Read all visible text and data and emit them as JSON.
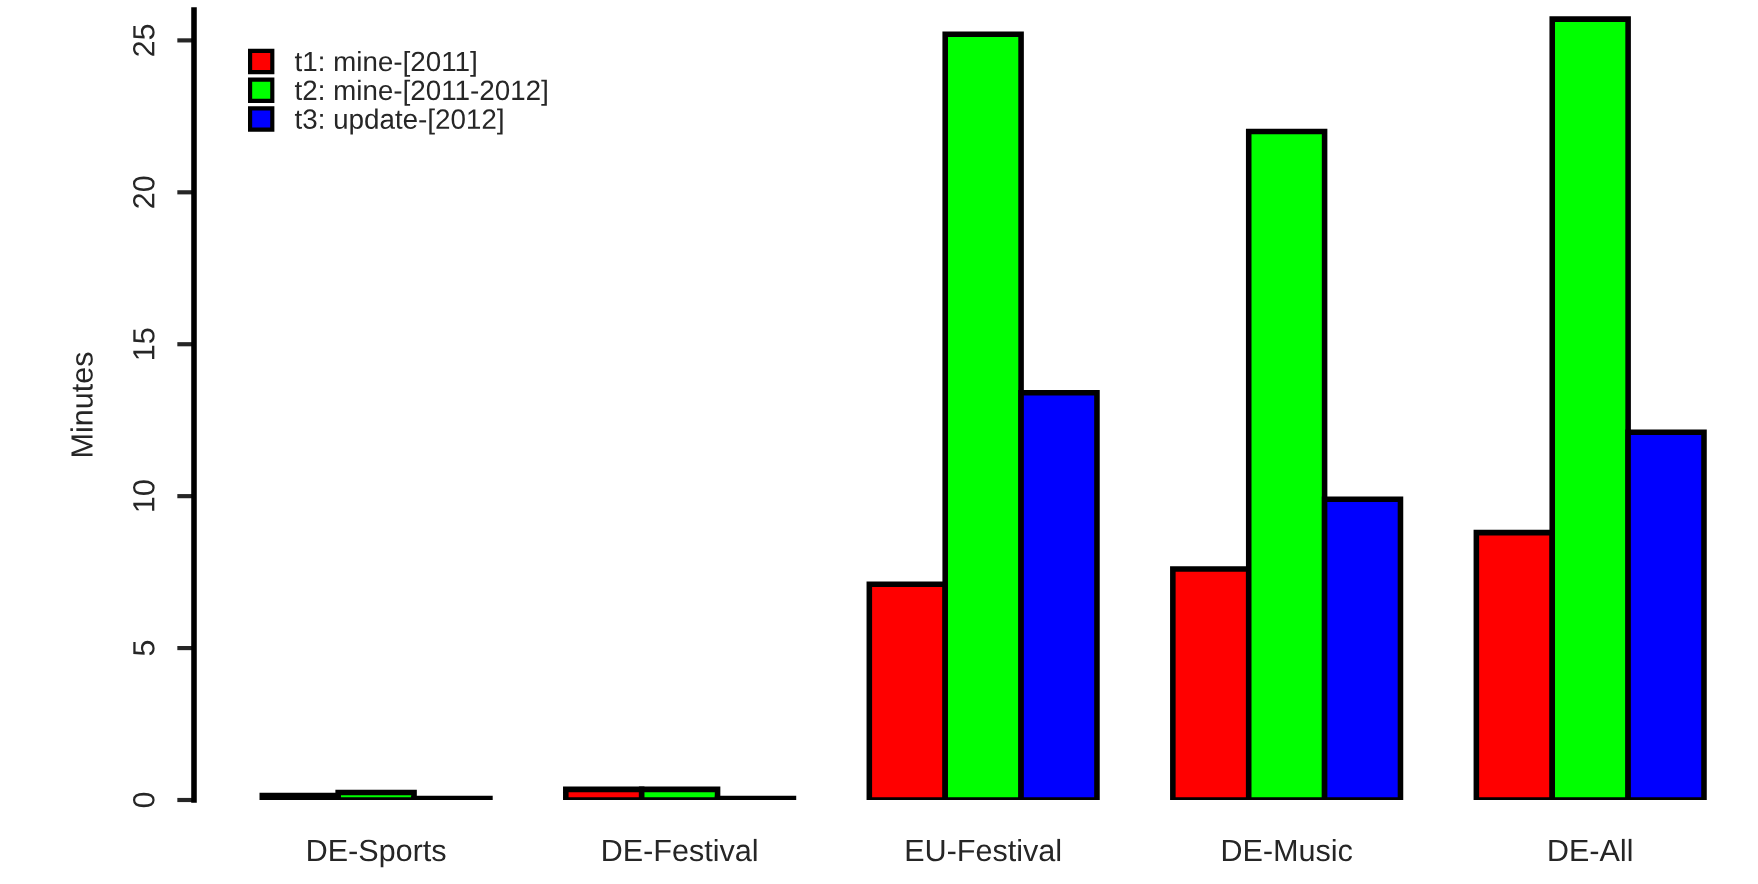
{
  "chart_data": {
    "type": "bar",
    "ylabel": "Minutes",
    "categories": [
      "DE-Sports",
      "DE-Festival",
      "EU-Festival",
      "DE-Music",
      "DE-All"
    ],
    "series": [
      {
        "name": "t1: mine-[2011]",
        "color": "#ff0000",
        "values": [
          0.15,
          0.35,
          7.1,
          7.6,
          8.8
        ]
      },
      {
        "name": "t2: mine-[2011-2012]",
        "color": "#00ff00",
        "values": [
          0.25,
          0.35,
          25.2,
          22.0,
          25.7
        ]
      },
      {
        "name": "t3: update-[2012]",
        "color": "#0000ff",
        "values": [
          0.05,
          0.05,
          13.4,
          9.9,
          12.1
        ]
      }
    ],
    "ylim": [
      0,
      26
    ],
    "yticks": [
      0,
      5,
      10,
      15,
      20,
      25
    ],
    "grid": false,
    "legend": "top left"
  }
}
